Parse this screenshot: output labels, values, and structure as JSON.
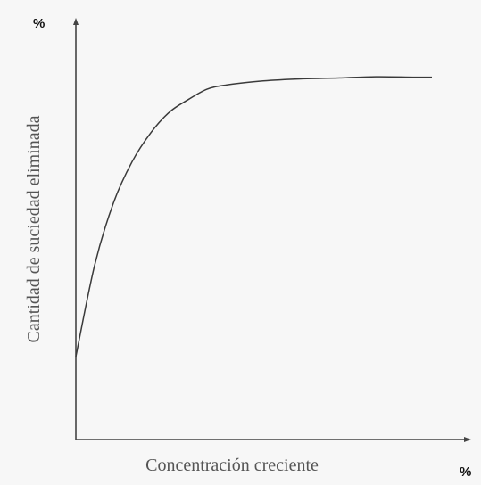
{
  "y_unit_marker": "%",
  "x_unit_marker": "%",
  "colors": {
    "axis": "#444444",
    "curve": "#3a3a3a",
    "label": "#555555",
    "background": "#f7f7f7"
  },
  "chart_data": {
    "type": "line",
    "title": "",
    "xlabel": "Concentración creciente",
    "ylabel": "Cantidad de suciedad eliminada",
    "x_ticks": [],
    "y_ticks": [],
    "grid": false,
    "legend": "none",
    "xlim": [
      0,
      1
    ],
    "ylim": [
      0,
      1
    ],
    "series": [
      {
        "x": [
          0,
          0.05,
          0.1,
          0.15,
          0.2,
          0.25,
          0.3,
          0.35,
          0.4,
          0.5,
          0.6,
          0.7,
          0.8,
          0.9,
          0.95
        ],
        "values": [
          0.2,
          0.42,
          0.57,
          0.67,
          0.74,
          0.79,
          0.82,
          0.845,
          0.855,
          0.865,
          0.87,
          0.872,
          0.875,
          0.874,
          0.874
        ]
      }
    ]
  }
}
